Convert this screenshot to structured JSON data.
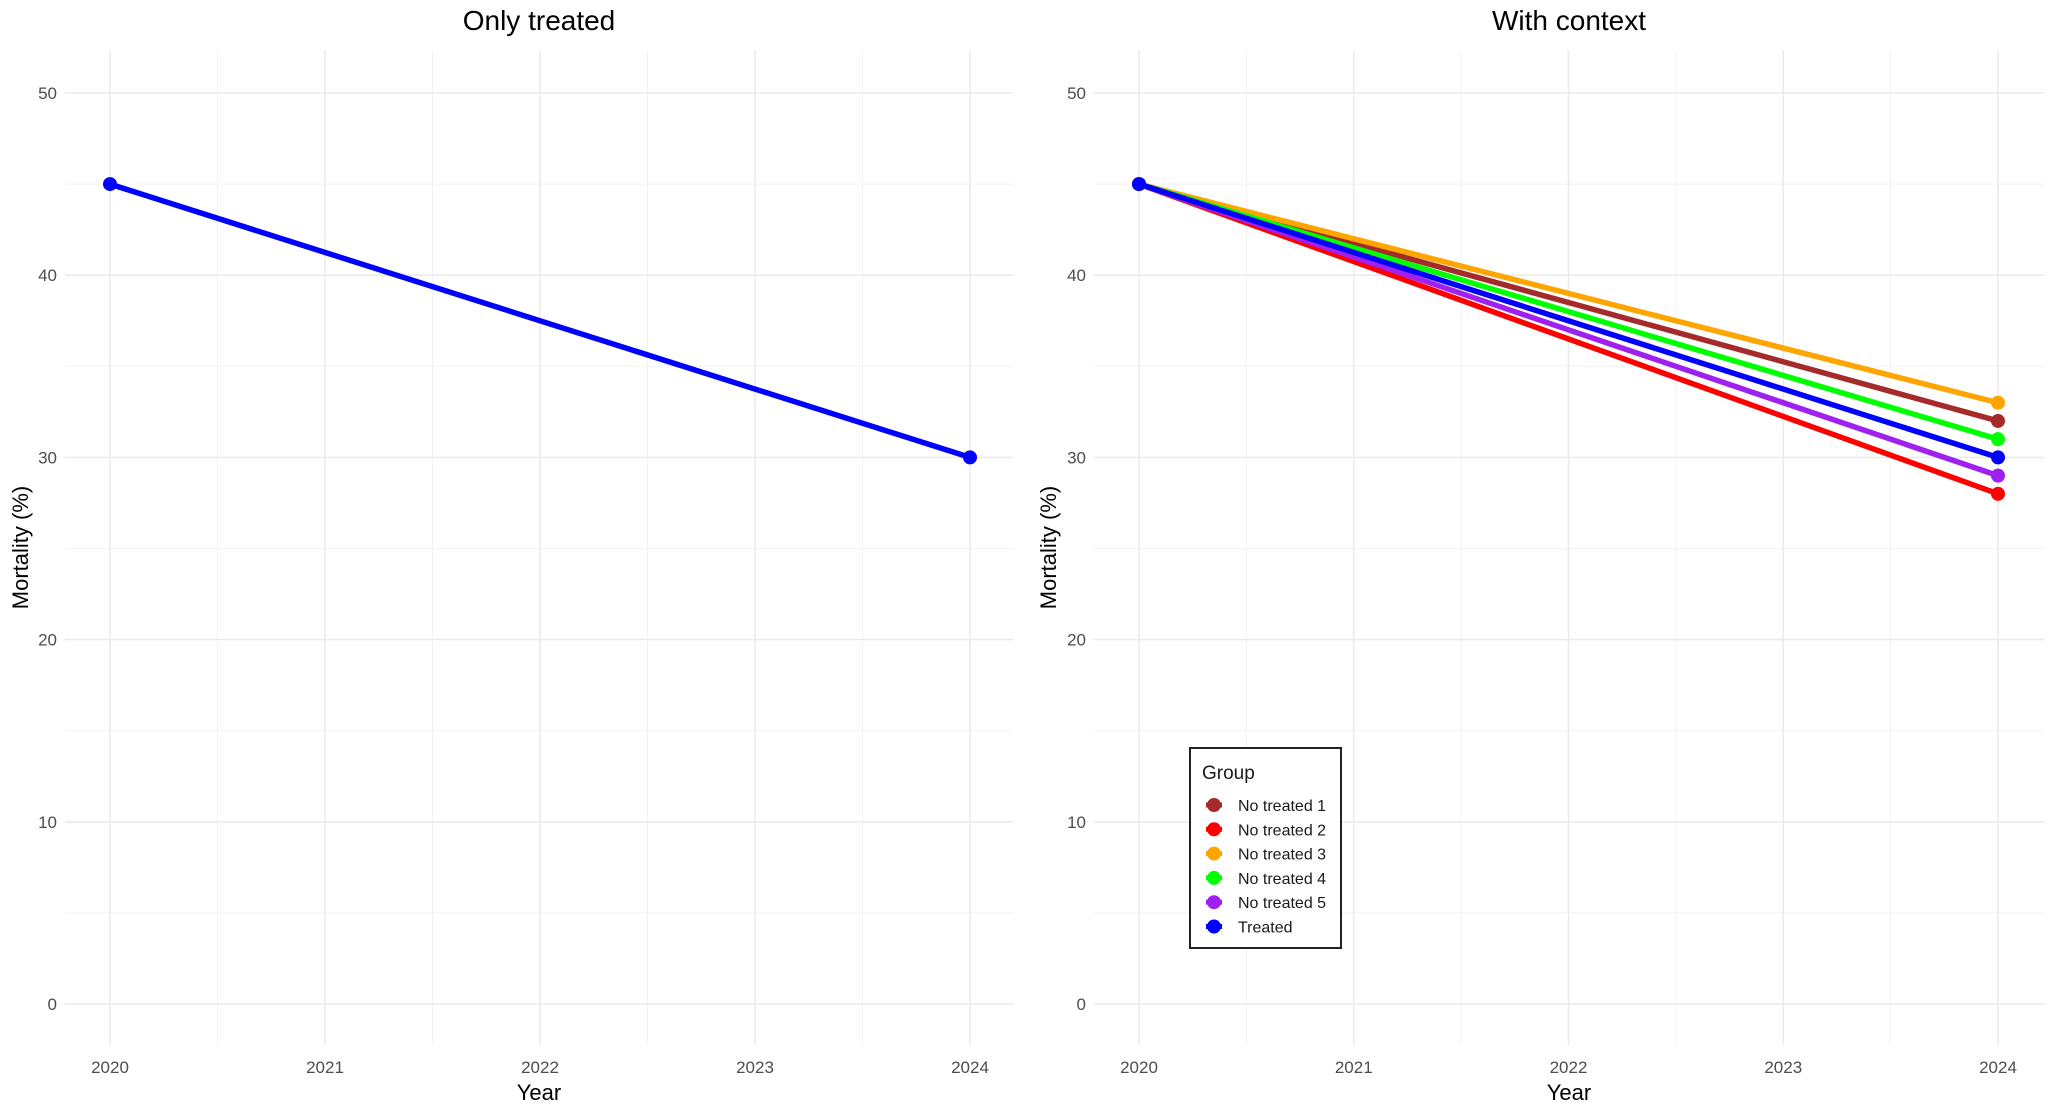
{
  "chart_data": [
    {
      "type": "line",
      "title": "Only treated",
      "xlabel": "Year",
      "ylabel": "Mortality (%)",
      "xlim": [
        2020,
        2024
      ],
      "ylim": [
        0,
        50
      ],
      "x_ticks": [
        "2020",
        "2021",
        "2022",
        "2023",
        "2024"
      ],
      "y_ticks": [
        "0",
        "10",
        "20",
        "30",
        "40",
        "50"
      ],
      "grid": true,
      "series": [
        {
          "color": "#0000ff",
          "x": [
            2020,
            2024
          ],
          "y": [
            45,
            30
          ]
        }
      ]
    },
    {
      "type": "line",
      "title": "With context",
      "xlabel": "Year",
      "ylabel": "Mortality (%)",
      "xlim": [
        2020,
        2024
      ],
      "ylim": [
        0,
        50
      ],
      "x_ticks": [
        "2020",
        "2021",
        "2022",
        "2023",
        "2024"
      ],
      "y_ticks": [
        "0",
        "10",
        "20",
        "30",
        "40",
        "50"
      ],
      "grid": true,
      "legend": {
        "title": "Group",
        "placement": "bottom-left"
      },
      "series": [
        {
          "name": "No treated 1",
          "color": "#a52a2a",
          "x": [
            2020,
            2024
          ],
          "y": [
            45,
            32
          ]
        },
        {
          "name": "No treated 2",
          "color": "#ff0000",
          "x": [
            2020,
            2024
          ],
          "y": [
            45,
            28
          ]
        },
        {
          "name": "No treated 3",
          "color": "#ffa500",
          "x": [
            2020,
            2024
          ],
          "y": [
            45,
            33
          ]
        },
        {
          "name": "No treated 4",
          "color": "#00ff00",
          "x": [
            2020,
            2024
          ],
          "y": [
            45,
            31
          ]
        },
        {
          "name": "No treated 5",
          "color": "#a020f0",
          "x": [
            2020,
            2024
          ],
          "y": [
            45,
            29
          ]
        },
        {
          "name": "Treated",
          "color": "#0000ff",
          "x": [
            2020,
            2024
          ],
          "y": [
            45,
            30
          ]
        }
      ]
    }
  ]
}
